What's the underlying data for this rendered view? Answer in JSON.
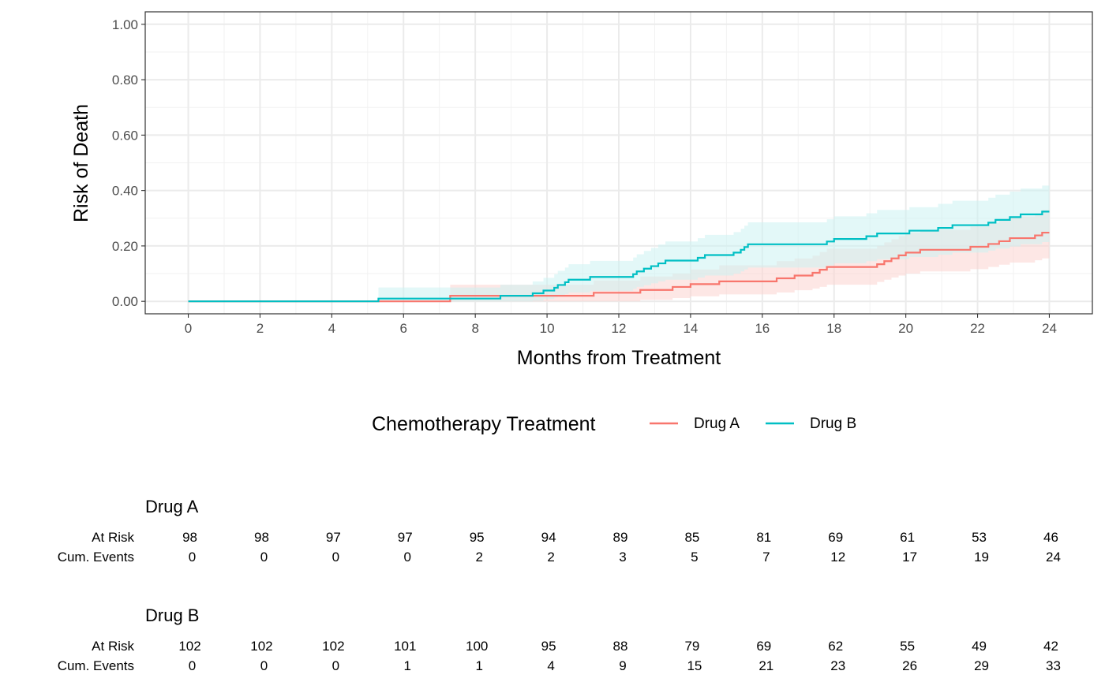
{
  "chart_data": {
    "type": "line",
    "subtype": "cumulative-incidence-step",
    "xlabel": "Months from Treatment",
    "ylabel": "Risk of Death",
    "xlim": [
      -1.2,
      25.2
    ],
    "ylim": [
      -0.045,
      1.045
    ],
    "x_ticks": [
      0,
      2,
      4,
      6,
      8,
      10,
      12,
      14,
      16,
      18,
      20,
      22,
      24
    ],
    "y_ticks": [
      0,
      0.2,
      0.4,
      0.6,
      0.8,
      1.0
    ],
    "y_tick_labels": [
      "0.00",
      "0.20",
      "0.40",
      "0.60",
      "0.80",
      "1.00"
    ],
    "grid": true,
    "legend": {
      "title": "Chemotherapy Treatment",
      "position": "bottom",
      "entries": [
        "Drug A",
        "Drug B"
      ]
    },
    "series": [
      {
        "name": "Drug A",
        "color": "#F8766D",
        "ci_color": "#FBD3D0",
        "step_points": [
          [
            0,
            0
          ],
          [
            7.3,
            0.0
          ],
          [
            7.3,
            0.02
          ],
          [
            11.3,
            0.02
          ],
          [
            11.3,
            0.031
          ],
          [
            12.6,
            0.031
          ],
          [
            12.6,
            0.041
          ],
          [
            13.5,
            0.041
          ],
          [
            13.5,
            0.052
          ],
          [
            14.0,
            0.052
          ],
          [
            14.0,
            0.062
          ],
          [
            14.8,
            0.062
          ],
          [
            14.8,
            0.072
          ],
          [
            16.4,
            0.072
          ],
          [
            16.4,
            0.083
          ],
          [
            16.9,
            0.083
          ],
          [
            16.9,
            0.093
          ],
          [
            17.4,
            0.093
          ],
          [
            17.4,
            0.103
          ],
          [
            17.6,
            0.103
          ],
          [
            17.6,
            0.114
          ],
          [
            17.8,
            0.114
          ],
          [
            17.8,
            0.124
          ],
          [
            19.2,
            0.124
          ],
          [
            19.2,
            0.134
          ],
          [
            19.4,
            0.134
          ],
          [
            19.4,
            0.145
          ],
          [
            19.6,
            0.145
          ],
          [
            19.6,
            0.155
          ],
          [
            19.8,
            0.155
          ],
          [
            19.8,
            0.166
          ],
          [
            20.0,
            0.166
          ],
          [
            20.0,
            0.176
          ],
          [
            20.4,
            0.176
          ],
          [
            20.4,
            0.186
          ],
          [
            21.8,
            0.186
          ],
          [
            21.8,
            0.197
          ],
          [
            22.3,
            0.197
          ],
          [
            22.3,
            0.207
          ],
          [
            22.6,
            0.207
          ],
          [
            22.6,
            0.217
          ],
          [
            22.9,
            0.217
          ],
          [
            22.9,
            0.228
          ],
          [
            23.6,
            0.228
          ],
          [
            23.6,
            0.238
          ],
          [
            23.8,
            0.238
          ],
          [
            23.8,
            0.248
          ],
          [
            24.0,
            0.248
          ]
        ],
        "ci": [
          [
            0,
            0.0,
            0.0
          ],
          [
            7.3,
            0.0,
            0.0
          ],
          [
            7.3,
            0.0,
            0.06
          ],
          [
            11.3,
            0.0,
            0.06
          ],
          [
            11.3,
            0.0,
            0.075
          ],
          [
            12.6,
            0.0,
            0.075
          ],
          [
            12.6,
            0.005,
            0.09
          ],
          [
            13.5,
            0.005,
            0.09
          ],
          [
            13.5,
            0.012,
            0.1
          ],
          [
            14.0,
            0.012,
            0.1
          ],
          [
            14.0,
            0.018,
            0.115
          ],
          [
            14.8,
            0.018,
            0.115
          ],
          [
            14.8,
            0.025,
            0.13
          ],
          [
            16.4,
            0.025,
            0.13
          ],
          [
            16.4,
            0.032,
            0.145
          ],
          [
            16.9,
            0.032,
            0.145
          ],
          [
            16.9,
            0.04,
            0.155
          ],
          [
            17.4,
            0.04,
            0.155
          ],
          [
            17.4,
            0.046,
            0.165
          ],
          [
            17.6,
            0.046,
            0.165
          ],
          [
            17.6,
            0.052,
            0.178
          ],
          [
            17.8,
            0.052,
            0.178
          ],
          [
            17.8,
            0.06,
            0.19
          ],
          [
            19.2,
            0.06,
            0.19
          ],
          [
            19.2,
            0.07,
            0.2
          ],
          [
            19.4,
            0.07,
            0.2
          ],
          [
            19.4,
            0.078,
            0.213
          ],
          [
            19.6,
            0.078,
            0.213
          ],
          [
            19.6,
            0.086,
            0.224
          ],
          [
            19.8,
            0.086,
            0.224
          ],
          [
            19.8,
            0.093,
            0.236
          ],
          [
            20.0,
            0.093,
            0.236
          ],
          [
            20.0,
            0.1,
            0.247
          ],
          [
            20.4,
            0.1,
            0.247
          ],
          [
            20.4,
            0.108,
            0.258
          ],
          [
            21.8,
            0.108,
            0.258
          ],
          [
            21.8,
            0.116,
            0.27
          ],
          [
            22.3,
            0.116,
            0.27
          ],
          [
            22.3,
            0.124,
            0.282
          ],
          [
            22.6,
            0.124,
            0.282
          ],
          [
            22.6,
            0.132,
            0.294
          ],
          [
            22.9,
            0.132,
            0.294
          ],
          [
            22.9,
            0.14,
            0.306
          ],
          [
            23.6,
            0.14,
            0.306
          ],
          [
            23.6,
            0.148,
            0.318
          ],
          [
            23.8,
            0.148,
            0.318
          ],
          [
            23.8,
            0.155,
            0.33
          ],
          [
            24.0,
            0.155,
            0.33
          ]
        ]
      },
      {
        "name": "Drug B",
        "color": "#00BFC4",
        "ci_color": "#CCF2F3",
        "step_points": [
          [
            0,
            0
          ],
          [
            5.3,
            0.0
          ],
          [
            5.3,
            0.01
          ],
          [
            8.7,
            0.01
          ],
          [
            8.7,
            0.02
          ],
          [
            9.6,
            0.02
          ],
          [
            9.6,
            0.029
          ],
          [
            9.9,
            0.029
          ],
          [
            9.9,
            0.039
          ],
          [
            10.2,
            0.039
          ],
          [
            10.2,
            0.049
          ],
          [
            10.3,
            0.049
          ],
          [
            10.3,
            0.059
          ],
          [
            10.5,
            0.059
          ],
          [
            10.5,
            0.069
          ],
          [
            10.6,
            0.069
          ],
          [
            10.6,
            0.078
          ],
          [
            11.2,
            0.078
          ],
          [
            11.2,
            0.088
          ],
          [
            12.4,
            0.088
          ],
          [
            12.4,
            0.098
          ],
          [
            12.5,
            0.098
          ],
          [
            12.5,
            0.108
          ],
          [
            12.7,
            0.108
          ],
          [
            12.7,
            0.118
          ],
          [
            12.9,
            0.118
          ],
          [
            12.9,
            0.127
          ],
          [
            13.1,
            0.127
          ],
          [
            13.1,
            0.137
          ],
          [
            13.3,
            0.137
          ],
          [
            13.3,
            0.147
          ],
          [
            14.2,
            0.147
          ],
          [
            14.2,
            0.157
          ],
          [
            14.4,
            0.157
          ],
          [
            14.4,
            0.167
          ],
          [
            15.2,
            0.167
          ],
          [
            15.2,
            0.176
          ],
          [
            15.4,
            0.176
          ],
          [
            15.4,
            0.186
          ],
          [
            15.5,
            0.186
          ],
          [
            15.5,
            0.196
          ],
          [
            15.6,
            0.196
          ],
          [
            15.6,
            0.206
          ],
          [
            17.8,
            0.206
          ],
          [
            17.8,
            0.216
          ],
          [
            18.0,
            0.216
          ],
          [
            18.0,
            0.225
          ],
          [
            18.9,
            0.225
          ],
          [
            18.9,
            0.235
          ],
          [
            19.2,
            0.235
          ],
          [
            19.2,
            0.245
          ],
          [
            20.1,
            0.245
          ],
          [
            20.1,
            0.255
          ],
          [
            20.9,
            0.255
          ],
          [
            20.9,
            0.265
          ],
          [
            21.3,
            0.265
          ],
          [
            21.3,
            0.275
          ],
          [
            22.3,
            0.275
          ],
          [
            22.3,
            0.284
          ],
          [
            22.5,
            0.284
          ],
          [
            22.5,
            0.294
          ],
          [
            22.9,
            0.294
          ],
          [
            22.9,
            0.304
          ],
          [
            23.2,
            0.304
          ],
          [
            23.2,
            0.314
          ],
          [
            23.8,
            0.314
          ],
          [
            23.8,
            0.324
          ],
          [
            24.0,
            0.324
          ]
        ],
        "ci": [
          [
            0,
            0.0,
            0.0
          ],
          [
            5.3,
            0.0,
            0.0
          ],
          [
            5.3,
            0.0,
            0.05
          ],
          [
            8.7,
            0.0,
            0.05
          ],
          [
            8.7,
            0.0,
            0.06
          ],
          [
            9.6,
            0.0,
            0.06
          ],
          [
            9.6,
            0.002,
            0.072
          ],
          [
            9.9,
            0.002,
            0.072
          ],
          [
            9.9,
            0.008,
            0.085
          ],
          [
            10.2,
            0.008,
            0.085
          ],
          [
            10.2,
            0.014,
            0.098
          ],
          [
            10.3,
            0.014,
            0.098
          ],
          [
            10.3,
            0.02,
            0.11
          ],
          [
            10.5,
            0.02,
            0.11
          ],
          [
            10.5,
            0.026,
            0.122
          ],
          [
            10.6,
            0.026,
            0.122
          ],
          [
            10.6,
            0.032,
            0.134
          ],
          [
            11.2,
            0.032,
            0.134
          ],
          [
            11.2,
            0.038,
            0.146
          ],
          [
            12.4,
            0.038,
            0.146
          ],
          [
            12.4,
            0.045,
            0.158
          ],
          [
            12.5,
            0.045,
            0.158
          ],
          [
            12.5,
            0.052,
            0.17
          ],
          [
            12.7,
            0.052,
            0.17
          ],
          [
            12.7,
            0.058,
            0.182
          ],
          [
            12.9,
            0.058,
            0.182
          ],
          [
            12.9,
            0.065,
            0.193
          ],
          [
            13.1,
            0.065,
            0.193
          ],
          [
            13.1,
            0.072,
            0.205
          ],
          [
            13.3,
            0.072,
            0.205
          ],
          [
            13.3,
            0.078,
            0.216
          ],
          [
            14.2,
            0.078,
            0.216
          ],
          [
            14.2,
            0.086,
            0.228
          ],
          [
            14.4,
            0.086,
            0.228
          ],
          [
            14.4,
            0.093,
            0.24
          ],
          [
            15.2,
            0.093,
            0.24
          ],
          [
            15.2,
            0.1,
            0.25
          ],
          [
            15.4,
            0.1,
            0.25
          ],
          [
            15.4,
            0.108,
            0.262
          ],
          [
            15.5,
            0.108,
            0.262
          ],
          [
            15.5,
            0.115,
            0.273
          ],
          [
            15.6,
            0.115,
            0.273
          ],
          [
            15.6,
            0.122,
            0.285
          ],
          [
            17.8,
            0.122,
            0.285
          ],
          [
            17.8,
            0.13,
            0.296
          ],
          [
            18.0,
            0.13,
            0.296
          ],
          [
            18.0,
            0.137,
            0.307
          ],
          [
            18.9,
            0.137,
            0.307
          ],
          [
            18.9,
            0.145,
            0.318
          ],
          [
            19.2,
            0.145,
            0.318
          ],
          [
            19.2,
            0.152,
            0.33
          ],
          [
            20.1,
            0.152,
            0.33
          ],
          [
            20.1,
            0.16,
            0.34
          ],
          [
            20.9,
            0.16,
            0.34
          ],
          [
            20.9,
            0.168,
            0.352
          ],
          [
            21.3,
            0.168,
            0.352
          ],
          [
            21.3,
            0.176,
            0.363
          ],
          [
            22.3,
            0.176,
            0.363
          ],
          [
            22.3,
            0.183,
            0.374
          ],
          [
            22.5,
            0.183,
            0.374
          ],
          [
            22.5,
            0.19,
            0.385
          ],
          [
            22.9,
            0.19,
            0.385
          ],
          [
            22.9,
            0.198,
            0.396
          ],
          [
            23.2,
            0.198,
            0.396
          ],
          [
            23.2,
            0.206,
            0.407
          ],
          [
            23.8,
            0.206,
            0.407
          ],
          [
            23.8,
            0.214,
            0.418
          ],
          [
            24.0,
            0.214,
            0.418
          ]
        ]
      }
    ]
  },
  "risk_table": {
    "row_labels": [
      "At Risk",
      "Cum. Events"
    ],
    "times": [
      0,
      2,
      4,
      6,
      8,
      10,
      12,
      14,
      16,
      18,
      20,
      22,
      24
    ],
    "groups": [
      {
        "name": "Drug A",
        "at_risk": [
          "98",
          "98",
          "97",
          "97",
          "95",
          "94",
          "89",
          "85",
          "81",
          "69",
          "61",
          "53",
          "46"
        ],
        "cum_events": [
          "0",
          "0",
          "0",
          "0",
          "2",
          "2",
          "3",
          "5",
          "7",
          "12",
          "17",
          "19",
          "24"
        ]
      },
      {
        "name": "Drug B",
        "at_risk": [
          "102",
          "102",
          "102",
          "101",
          "100",
          "95",
          "88",
          "79",
          "69",
          "62",
          "55",
          "49",
          "42"
        ],
        "cum_events": [
          "0",
          "0",
          "0",
          "1",
          "1",
          "4",
          "9",
          "15",
          "21",
          "23",
          "26",
          "29",
          "33"
        ]
      }
    ]
  }
}
